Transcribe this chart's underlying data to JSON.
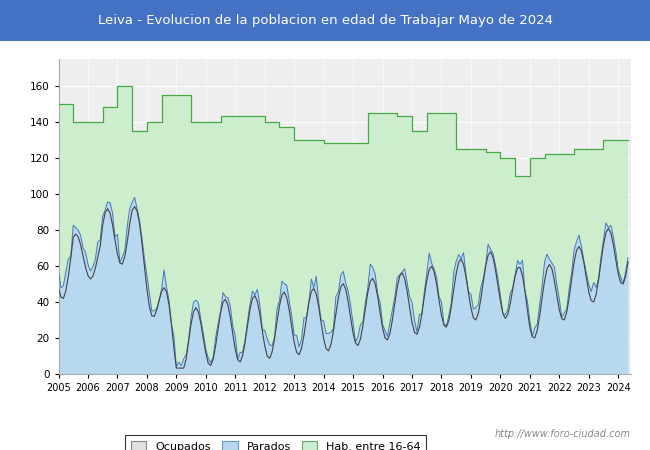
{
  "title": "Leiva - Evolucion de la poblacion en edad de Trabajar Mayo de 2024",
  "title_bg": "#4472c4",
  "title_color": "#ffffff",
  "ylim": [
    0,
    175
  ],
  "yticks": [
    0,
    20,
    40,
    60,
    80,
    100,
    120,
    140,
    160
  ],
  "legend_labels": [
    "Ocupados",
    "Parados",
    "Hab. entre 16-64"
  ],
  "legend_colors_fill": [
    "#e0e0e0",
    "#b8d8f0",
    "#cceecc"
  ],
  "legend_colors_edge": [
    "#888888",
    "#6699cc",
    "#66aa66"
  ],
  "watermark": "http://www.foro-ciudad.com",
  "hab_fill": "#cceecc",
  "hab_line_color": "#44aa44",
  "ocu_line_color": "#444444",
  "par_fill": "#b8d8f0",
  "par_line_color": "#4477bb",
  "bg_color": "#eeeeee",
  "grid_color": "#ffffff"
}
